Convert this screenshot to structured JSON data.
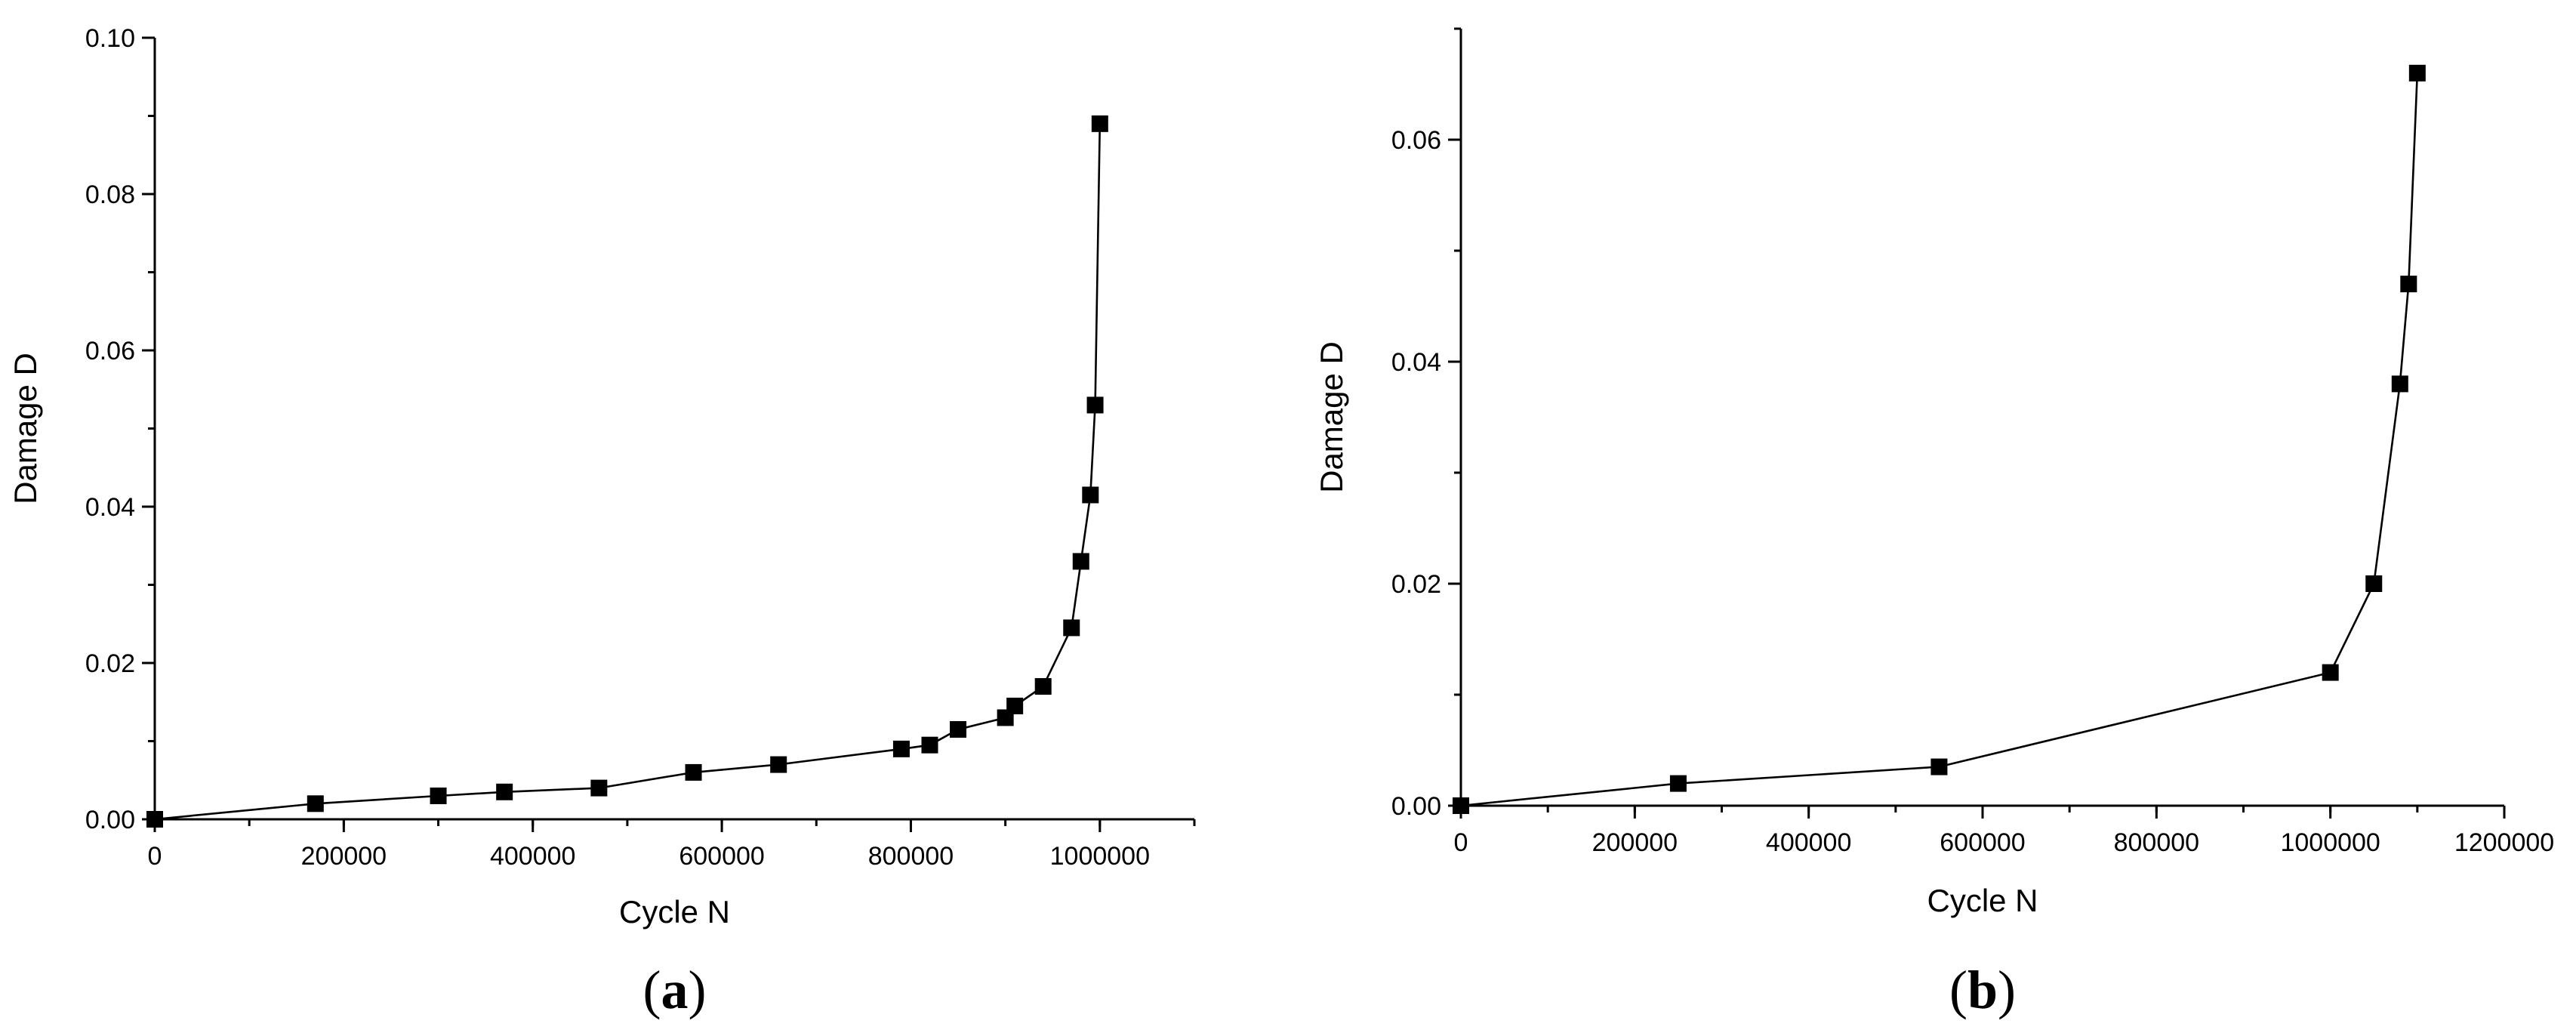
{
  "chart_data": [
    {
      "id": "a",
      "panel_label": "a",
      "type": "line",
      "markers": "square",
      "xlabel": "Cycle N",
      "ylabel": "Damage D",
      "xlim": [
        0,
        1100000
      ],
      "ylim": [
        0,
        0.1
      ],
      "xticks": [
        0,
        200000,
        400000,
        600000,
        800000,
        1000000
      ],
      "xtick_labels": [
        "0",
        "200000",
        "400000",
        "600000",
        "800000",
        "1000000"
      ],
      "xminor_step": 100000,
      "yticks": [
        0,
        0.02,
        0.04,
        0.06,
        0.08,
        0.1
      ],
      "ytick_labels": [
        "0.00",
        "0.02",
        "0.04",
        "0.06",
        "0.08",
        "0.10"
      ],
      "yminor_step": 0.01,
      "grid": false,
      "x": [
        0,
        170000,
        300000,
        370000,
        470000,
        570000,
        660000,
        790000,
        820000,
        850000,
        900000,
        910000,
        940000,
        970000,
        980000,
        990000,
        995000,
        1000000
      ],
      "y": [
        0,
        0.002,
        0.003,
        0.0035,
        0.004,
        0.006,
        0.007,
        0.009,
        0.0095,
        0.0115,
        0.013,
        0.0145,
        0.017,
        0.0245,
        0.033,
        0.0415,
        0.053,
        0.089
      ]
    },
    {
      "id": "b",
      "panel_label": "b",
      "type": "line",
      "markers": "square",
      "xlabel": "Cycle N",
      "ylabel": "Damage D",
      "xlim": [
        0,
        1200000
      ],
      "ylim": [
        0,
        0.07
      ],
      "xticks": [
        0,
        200000,
        400000,
        600000,
        800000,
        1000000,
        1200000
      ],
      "xtick_labels": [
        "0",
        "200000",
        "400000",
        "600000",
        "800000",
        "1000000",
        "1200000"
      ],
      "xminor_step": 100000,
      "yticks": [
        0,
        0.02,
        0.04,
        0.06
      ],
      "ytick_labels": [
        "0.00",
        "0.02",
        "0.04",
        "0.06"
      ],
      "yminor_step": 0.01,
      "grid": false,
      "x": [
        0,
        250000,
        550000,
        1000000,
        1050000,
        1080000,
        1090000,
        1100000
      ],
      "y": [
        0,
        0.002,
        0.0035,
        0.012,
        0.02,
        0.038,
        0.047,
        0.066
      ]
    }
  ]
}
